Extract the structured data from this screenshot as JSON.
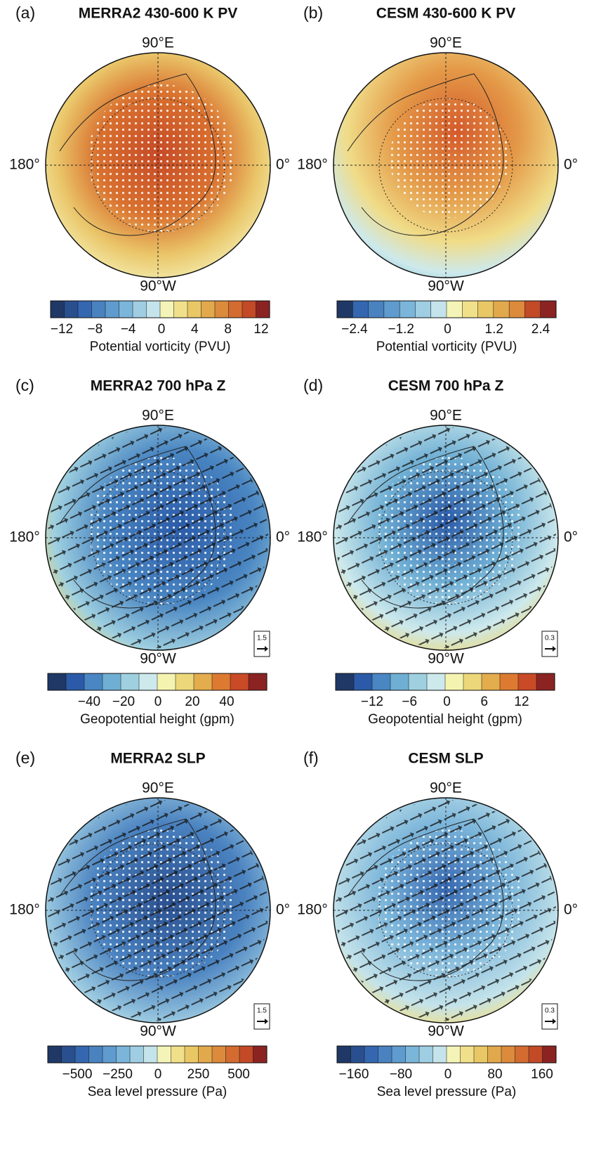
{
  "panels": [
    {
      "label": "(a)",
      "title": "MERRA2 430-600 K PV",
      "top": "90°E",
      "bottom": "90°W",
      "left": "180°",
      "right": "0°",
      "colorbar": {
        "colors": [
          "#1f3866",
          "#2a4f8f",
          "#3567b0",
          "#4a82c0",
          "#5f9bce",
          "#7bb5da",
          "#9fcde2",
          "#c4e3ea",
          "#f4f4b8",
          "#f0e08a",
          "#e9c765",
          "#e2a94c",
          "#dc8a3c",
          "#d46b30",
          "#c24a27",
          "#8b2323"
        ],
        "ticks": [
          "−12",
          "−8",
          "−4",
          "0",
          "4",
          "8",
          "12"
        ],
        "label": "Potential vorticity (PVU)"
      }
    },
    {
      "label": "(b)",
      "title": "CESM 430-600 K PV",
      "top": "90°E",
      "bottom": "90°W",
      "left": "180°",
      "right": "0°",
      "colorbar": {
        "colors": [
          "#1f3866",
          "#3567b0",
          "#4a82c0",
          "#5f9bce",
          "#7bb5da",
          "#9fcde2",
          "#c4e3ea",
          "#f4f4b8",
          "#f0e08a",
          "#e9c765",
          "#e2a94c",
          "#dc8a3c",
          "#c24a27",
          "#8b2323"
        ],
        "ticks": [
          "−2.4",
          "−1.2",
          "0",
          "1.2",
          "2.4"
        ],
        "label": "Potential vorticity (PVU)"
      }
    },
    {
      "label": "(c)",
      "title": "MERRA2 700 hPa Z",
      "top": "90°E",
      "bottom": "90°W",
      "left": "180°",
      "right": "0°",
      "vector_scale": "1.5",
      "colorbar": {
        "colors": [
          "#1f3866",
          "#2b5ba8",
          "#4a86c2",
          "#6fafd4",
          "#9fd0e0",
          "#cde9ec",
          "#f5f3b0",
          "#ecd87a",
          "#e3ac4c",
          "#dd7a31",
          "#c94a26",
          "#8b2323"
        ],
        "ticks": [
          "−40",
          "−20",
          "0",
          "20",
          "40"
        ],
        "label": "Geopotential height (gpm)"
      }
    },
    {
      "label": "(d)",
      "title": "CESM 700 hPa Z",
      "top": "90°E",
      "bottom": "90°W",
      "left": "180°",
      "right": "0°",
      "vector_scale": "0.3",
      "colorbar": {
        "colors": [
          "#1f3866",
          "#2b5ba8",
          "#4a86c2",
          "#6fafd4",
          "#9fd0e0",
          "#cde9ec",
          "#f5f3b0",
          "#ecd87a",
          "#e3ac4c",
          "#dd7a31",
          "#c94a26",
          "#8b2323"
        ],
        "ticks": [
          "−12",
          "−6",
          "0",
          "6",
          "12"
        ],
        "label": "Geopotential height (gpm)"
      }
    },
    {
      "label": "(e)",
      "title": "MERRA2 SLP",
      "top": "90°E",
      "bottom": "90°W",
      "left": "180°",
      "right": "0°",
      "vector_scale": "1.5",
      "colorbar": {
        "colors": [
          "#1f3866",
          "#2a4f8f",
          "#3567b0",
          "#4a82c0",
          "#5f9bce",
          "#7bb5da",
          "#9fcde2",
          "#c4e3ea",
          "#f4f4b8",
          "#f0e08a",
          "#e9c765",
          "#e2a94c",
          "#dc8a3c",
          "#d46b30",
          "#c24a27",
          "#8b2323"
        ],
        "ticks": [
          "−500",
          "−250",
          "0",
          "250",
          "500"
        ],
        "label": "Sea level pressure (Pa)"
      }
    },
    {
      "label": "(f)",
      "title": "CESM SLP",
      "top": "90°E",
      "bottom": "90°W",
      "left": "180°",
      "right": "0°",
      "vector_scale": "0.3",
      "colorbar": {
        "colors": [
          "#1f3866",
          "#2a4f8f",
          "#3567b0",
          "#4a82c0",
          "#5f9bce",
          "#7bb5da",
          "#9fcde2",
          "#c4e3ea",
          "#f4f4b8",
          "#f0e08a",
          "#e9c765",
          "#e2a94c",
          "#dc8a3c",
          "#d46b30",
          "#c24a27",
          "#8b2323"
        ],
        "ticks": [
          "−160",
          "−80",
          "0",
          "80",
          "160"
        ],
        "label": "Sea level pressure (Pa)"
      }
    }
  ]
}
